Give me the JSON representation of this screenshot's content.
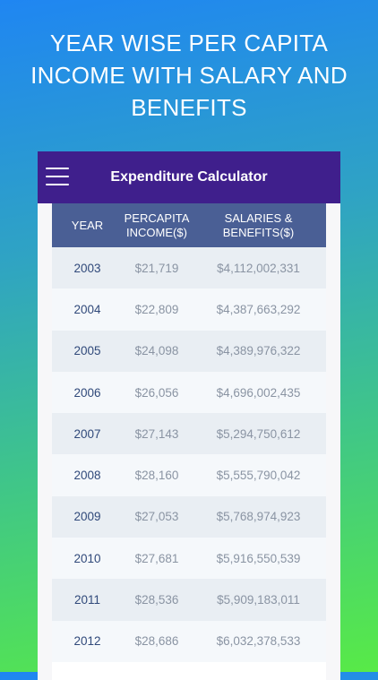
{
  "headline": "YEAR WISE PER CAPITA\nINCOME WITH SALARY AND\nBENEFITS",
  "app": {
    "title": "Expenditure Calculator"
  },
  "table": {
    "headers": [
      "YEAR",
      "PERCAPITA INCOME($)",
      "SALARIES & BENEFITS($)"
    ],
    "rows": [
      {
        "year": "2003",
        "per_capita": "$21,719",
        "salaries": "$4,112,002,331"
      },
      {
        "year": "2004",
        "per_capita": "$22,809",
        "salaries": "$4,387,663,292"
      },
      {
        "year": "2005",
        "per_capita": "$24,098",
        "salaries": "$4,389,976,322"
      },
      {
        "year": "2006",
        "per_capita": "$26,056",
        "salaries": "$4,696,002,435"
      },
      {
        "year": "2007",
        "per_capita": "$27,143",
        "salaries": "$5,294,750,612"
      },
      {
        "year": "2008",
        "per_capita": "$28,160",
        "salaries": "$5,555,790,042"
      },
      {
        "year": "2009",
        "per_capita": "$27,053",
        "salaries": "$5,768,974,923"
      },
      {
        "year": "2010",
        "per_capita": "$27,681",
        "salaries": "$5,916,550,539"
      },
      {
        "year": "2011",
        "per_capita": "$28,536",
        "salaries": "$5,909,183,011"
      },
      {
        "year": "2012",
        "per_capita": "$28,686",
        "salaries": "$6,032,378,533"
      }
    ]
  },
  "colors": {
    "app_bar": "#3f1f8c",
    "table_header": "#4a5f95",
    "year_text": "#30497a",
    "value_text": "#8a94a3"
  }
}
